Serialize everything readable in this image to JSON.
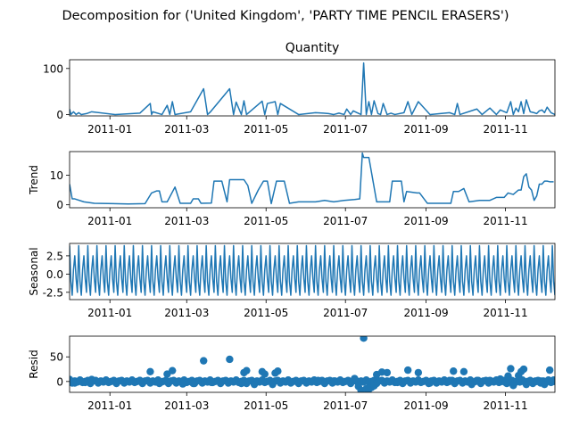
{
  "figure": {
    "suptitle": "Decomposition for ('United Kingdom', 'PARTY TIME PENCIL ERASERS')"
  },
  "colors": {
    "series": "#1f77b4",
    "axis": "#000000",
    "background": "#ffffff"
  },
  "chart_data": [
    {
      "type": "line",
      "title": "Quantity",
      "ylabel": "",
      "ylim": [
        -3,
        119
      ],
      "yticks": [
        0,
        100
      ],
      "xlim": [
        "2010-12-01",
        "2011-12-09"
      ],
      "xticks": [
        "2011-01",
        "2011-03",
        "2011-05",
        "2011-07",
        "2011-09",
        "2011-11"
      ],
      "grid": false,
      "x": [
        "2010-12-01",
        "2010-12-02",
        "2010-12-04",
        "2010-12-06",
        "2010-12-08",
        "2010-12-10",
        "2010-12-14",
        "2010-12-18",
        "2011-01-05",
        "2011-01-24",
        "2011-02-01",
        "2011-02-02",
        "2011-02-03",
        "2011-02-10",
        "2011-02-14",
        "2011-02-16",
        "2011-02-18",
        "2011-02-20",
        "2011-03-04",
        "2011-03-14",
        "2011-03-17",
        "2011-03-19",
        "2011-04-03",
        "2011-04-06",
        "2011-04-08",
        "2011-04-12",
        "2011-04-14",
        "2011-04-16",
        "2011-04-28",
        "2011-04-30",
        "2011-05-02",
        "2011-05-08",
        "2011-05-10",
        "2011-05-12",
        "2011-05-26",
        "2011-06-08",
        "2011-06-14",
        "2011-06-18",
        "2011-06-22",
        "2011-06-26",
        "2011-06-30",
        "2011-07-02",
        "2011-07-05",
        "2011-07-07",
        "2011-07-10",
        "2011-07-13",
        "2011-07-15",
        "2011-07-17",
        "2011-07-19",
        "2011-07-21",
        "2011-07-23",
        "2011-07-26",
        "2011-07-28",
        "2011-07-30",
        "2011-08-02",
        "2011-08-05",
        "2011-08-08",
        "2011-08-15",
        "2011-08-18",
        "2011-08-21",
        "2011-08-26",
        "2011-09-04",
        "2011-09-19",
        "2011-09-23",
        "2011-09-25",
        "2011-09-27",
        "2011-10-10",
        "2011-10-14",
        "2011-10-20",
        "2011-10-25",
        "2011-10-28",
        "2011-11-02",
        "2011-11-05",
        "2011-11-07",
        "2011-11-09",
        "2011-11-11",
        "2011-11-13",
        "2011-11-15",
        "2011-11-17",
        "2011-11-20",
        "2011-11-23",
        "2011-11-25",
        "2011-11-27",
        "2011-11-29",
        "2011-12-01",
        "2011-12-03",
        "2011-12-06",
        "2011-12-09"
      ],
      "y": [
        12,
        0,
        6,
        0,
        4,
        0,
        2,
        6,
        0,
        3,
        24,
        0,
        6,
        0,
        20,
        0,
        28,
        0,
        6,
        56,
        0,
        5,
        56,
        0,
        27,
        0,
        30,
        0,
        29,
        0,
        24,
        28,
        0,
        24,
        0,
        4,
        3,
        2,
        0,
        3,
        0,
        12,
        0,
        8,
        4,
        0,
        112,
        0,
        28,
        0,
        30,
        2,
        0,
        24,
        0,
        3,
        0,
        4,
        28,
        0,
        28,
        0,
        4,
        0,
        24,
        0,
        12,
        0,
        14,
        0,
        10,
        4,
        28,
        0,
        14,
        6,
        28,
        2,
        32,
        6,
        4,
        2,
        8,
        10,
        4,
        16,
        4,
        0
      ]
    },
    {
      "type": "line",
      "title": "",
      "ylabel": "Trend",
      "ylim": [
        -1,
        18
      ],
      "yticks": [
        0,
        10
      ],
      "xlim": [
        "2010-12-01",
        "2011-12-09"
      ],
      "xticks": [
        "2011-01",
        "2011-03",
        "2011-05",
        "2011-07",
        "2011-09",
        "2011-11"
      ],
      "grid": false,
      "x": [
        "2010-12-01",
        "2010-12-03",
        "2010-12-05",
        "2010-12-12",
        "2010-12-20",
        "2011-01-15",
        "2011-01-28",
        "2011-02-02",
        "2011-02-06",
        "2011-02-08",
        "2011-02-10",
        "2011-02-14",
        "2011-02-20",
        "2011-02-24",
        "2011-03-04",
        "2011-03-06",
        "2011-03-10",
        "2011-03-12",
        "2011-03-20",
        "2011-03-22",
        "2011-03-28",
        "2011-04-01",
        "2011-04-03",
        "2011-04-14",
        "2011-04-17",
        "2011-04-20",
        "2011-04-25",
        "2011-04-29",
        "2011-05-02",
        "2011-05-05",
        "2011-05-09",
        "2011-05-15",
        "2011-05-19",
        "2011-05-26",
        "2011-06-08",
        "2011-06-15",
        "2011-06-22",
        "2011-06-30",
        "2011-07-08",
        "2011-07-12",
        "2011-07-14",
        "2011-07-15",
        "2011-07-19",
        "2011-07-25",
        "2011-07-27",
        "2011-08-04",
        "2011-08-06",
        "2011-08-13",
        "2011-08-15",
        "2011-08-17",
        "2011-08-25",
        "2011-08-27",
        "2011-09-02",
        "2011-09-20",
        "2011-09-22",
        "2011-09-26",
        "2011-09-30",
        "2011-10-04",
        "2011-10-12",
        "2011-10-20",
        "2011-10-25",
        "2011-10-31",
        "2011-11-03",
        "2011-11-07",
        "2011-11-11",
        "2011-11-13",
        "2011-11-15",
        "2011-11-17",
        "2011-11-19",
        "2011-11-21",
        "2011-11-23",
        "2011-11-25",
        "2011-11-27",
        "2011-11-29",
        "2011-12-01",
        "2011-12-03",
        "2011-12-05",
        "2011-12-08"
      ],
      "y": [
        7,
        2,
        2,
        1,
        0.5,
        0.3,
        0.4,
        4,
        4.7,
        4.7,
        1,
        1,
        6,
        0.5,
        0.5,
        2,
        2,
        0.5,
        0.6,
        8,
        8,
        1,
        8.5,
        8.5,
        6.5,
        0.5,
        5,
        8,
        8,
        0.4,
        8,
        8,
        0.5,
        1,
        1,
        1.5,
        1,
        1.5,
        1.8,
        2,
        17.5,
        16,
        16,
        1,
        1,
        1,
        8,
        8,
        1,
        4.5,
        4,
        4,
        0.5,
        0.5,
        4.5,
        4.5,
        5.5,
        1,
        1.5,
        1.5,
        2.5,
        2.5,
        4,
        3.5,
        5,
        5,
        9.5,
        10.5,
        6,
        5,
        1.5,
        3,
        7,
        7,
        8,
        8,
        7.8,
        7.8
      ]
    },
    {
      "type": "line",
      "title": "",
      "ylabel": "Seasonal",
      "ylim": [
        -3.5,
        4.2
      ],
      "yticks": [
        -2.5,
        0.0,
        2.5
      ],
      "xlim": [
        "2010-12-01",
        "2011-12-09"
      ],
      "xticks": [
        "2011-01",
        "2011-03",
        "2011-05",
        "2011-07",
        "2011-09",
        "2011-11"
      ],
      "grid": false,
      "period_days": 7,
      "pattern": [
        3.9,
        -1.0,
        -2.9,
        0.6,
        2.5,
        -0.6,
        -2.5
      ]
    },
    {
      "type": "scatter",
      "title": "",
      "ylabel": "Resid",
      "ylim": [
        -22,
        92
      ],
      "yticks": [
        0,
        50
      ],
      "xlim": [
        "2010-12-01",
        "2011-12-09"
      ],
      "xticks": [
        "2011-01",
        "2011-03",
        "2011-05",
        "2011-07",
        "2011-09",
        "2011-11"
      ],
      "grid": false,
      "points": [
        [
          "2010-12-01",
          4
        ],
        [
          "2010-12-05",
          -3
        ],
        [
          "2010-12-09",
          2
        ],
        [
          "2010-12-13",
          -2
        ],
        [
          "2010-12-18",
          4
        ],
        [
          "2011-01-24",
          2
        ],
        [
          "2011-02-01",
          20
        ],
        [
          "2011-02-08",
          -4
        ],
        [
          "2011-02-14",
          15
        ],
        [
          "2011-02-18",
          22
        ],
        [
          "2011-02-26",
          -5
        ],
        [
          "2011-03-06",
          -4
        ],
        [
          "2011-03-14",
          42
        ],
        [
          "2011-03-20",
          -2
        ],
        [
          "2011-04-03",
          45
        ],
        [
          "2011-04-12",
          -4
        ],
        [
          "2011-04-14",
          18
        ],
        [
          "2011-04-16",
          22
        ],
        [
          "2011-04-22",
          -6
        ],
        [
          "2011-04-28",
          20
        ],
        [
          "2011-04-30",
          15
        ],
        [
          "2011-05-06",
          -6
        ],
        [
          "2011-05-08",
          17
        ],
        [
          "2011-05-10",
          21
        ],
        [
          "2011-05-20",
          -3
        ],
        [
          "2011-06-10",
          2
        ],
        [
          "2011-06-22",
          1
        ],
        [
          "2011-07-08",
          6
        ],
        [
          "2011-07-11",
          -10
        ],
        [
          "2011-07-13",
          -18
        ],
        [
          "2011-07-15",
          88
        ],
        [
          "2011-07-17",
          -15
        ],
        [
          "2011-07-19",
          -16
        ],
        [
          "2011-07-21",
          -12
        ],
        [
          "2011-07-23",
          -9
        ],
        [
          "2011-07-25",
          14
        ],
        [
          "2011-07-29",
          19
        ],
        [
          "2011-08-02",
          18
        ],
        [
          "2011-08-10",
          -2
        ],
        [
          "2011-08-18",
          23
        ],
        [
          "2011-08-26",
          18
        ],
        [
          "2011-09-04",
          -3
        ],
        [
          "2011-09-19",
          2
        ],
        [
          "2011-09-22",
          21
        ],
        [
          "2011-09-30",
          20
        ],
        [
          "2011-10-06",
          -6
        ],
        [
          "2011-10-10",
          2
        ],
        [
          "2011-10-20",
          2
        ],
        [
          "2011-10-28",
          5
        ],
        [
          "2011-11-01",
          -2
        ],
        [
          "2011-11-03",
          11
        ],
        [
          "2011-11-05",
          26
        ],
        [
          "2011-11-07",
          -8
        ],
        [
          "2011-11-11",
          12
        ],
        [
          "2011-11-13",
          20
        ],
        [
          "2011-11-15",
          25
        ],
        [
          "2011-11-17",
          -6
        ],
        [
          "2011-11-20",
          0
        ],
        [
          "2011-11-25",
          0
        ],
        [
          "2011-11-28",
          1
        ],
        [
          "2011-12-01",
          -6
        ],
        [
          "2011-12-05",
          23
        ],
        [
          "2011-12-08",
          3
        ]
      ]
    }
  ]
}
